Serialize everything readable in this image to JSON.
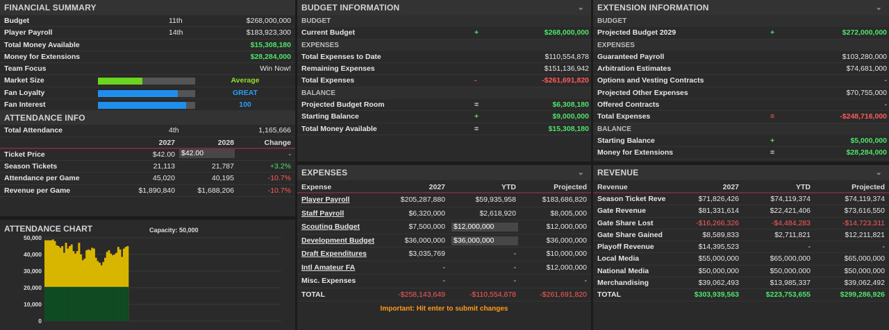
{
  "financial": {
    "title": "FINANCIAL SUMMARY",
    "rows": [
      {
        "label": "Budget",
        "rank": "11th",
        "value": "$268,000,000",
        "cls": ""
      },
      {
        "label": "Player Payroll",
        "rank": "14th",
        "value": "$183,923,300",
        "cls": ""
      },
      {
        "label": "Total Money Available",
        "rank": "",
        "value": "$15,308,180",
        "cls": "green"
      },
      {
        "label": "Money for Extensions",
        "rank": "",
        "value": "$28,284,000",
        "cls": "green"
      },
      {
        "label": "Team Focus",
        "rank": "",
        "value": "Win Now!",
        "cls": ""
      }
    ],
    "meters": [
      {
        "label": "Market Size",
        "fill": 0.46,
        "color": "#6bd61f",
        "text": "Average",
        "text_color": "#8fe02a"
      },
      {
        "label": "Fan Loyalty",
        "fill": 0.82,
        "color": "#1f8fef",
        "text": "GREAT",
        "text_color": "#2a9df4"
      },
      {
        "label": "Fan Interest",
        "fill": 0.91,
        "color": "#1f8fef",
        "text": "100",
        "text_color": "#2a9df4"
      }
    ]
  },
  "attendance": {
    "title": "ATTENDANCE INFO",
    "total_label": "Total Attendance",
    "total_rank": "4th",
    "total_value": "1,165,666",
    "headers": [
      "2027",
      "2028",
      "Change"
    ],
    "rows": [
      {
        "label": "Ticket Price",
        "y1": "$42.00",
        "y2": "$42.00",
        "change": "-",
        "cls": ""
      },
      {
        "label": "Season Tickets",
        "y1": "21,113",
        "y2": "21,787",
        "change": "+3.2%",
        "cls": "green"
      },
      {
        "label": "Attendance per Game",
        "y1": "45,020",
        "y2": "40,195",
        "change": "-10.7%",
        "cls": "red"
      },
      {
        "label": "Revenue per Game",
        "y1": "$1,890,840",
        "y2": "$1,688,206",
        "change": "-10.7%",
        "cls": "red"
      }
    ]
  },
  "chart": {
    "title": "ATTENDANCE CHART",
    "capacity": "Capacity: 50,000"
  },
  "chart_data": {
    "type": "bar",
    "title": "ATTENDANCE CHART",
    "ylim": [
      0,
      50000
    ],
    "yticks": [
      "0",
      "10,000",
      "20,000",
      "30,000",
      "40,000",
      "50,000"
    ],
    "series": [
      {
        "values": [
          20500,
          20500,
          20500,
          20500,
          20500,
          20500,
          20500,
          20500,
          20500,
          20500,
          20500,
          20500,
          20500,
          20500,
          20500,
          20500,
          20500,
          20500,
          20500,
          20500,
          20500,
          20500,
          20500,
          20500,
          20500,
          20500,
          20500,
          20500,
          20500,
          20500,
          20500,
          20500,
          20500,
          20500,
          20500,
          20500,
          20500,
          20500,
          20500,
          20500,
          20500,
          20500,
          20500,
          20500,
          20500
        ],
        "color": "#0f4a22"
      },
      {
        "values": [
          48500,
          48500,
          48500,
          48500,
          49000,
          48000,
          45500,
          45000,
          44000,
          45000,
          41000,
          47000,
          43500,
          45000,
          46000,
          42000,
          40500,
          42000,
          47000,
          40000,
          36500,
          37500,
          42500,
          43000,
          42500,
          44000,
          43500,
          38000,
          36000,
          35000,
          33500,
          35500,
          38000,
          41500,
          42500,
          40500,
          39500,
          40000,
          41000,
          44500,
          43000,
          38500,
          43500,
          44500,
          45000
        ],
        "color": "#d8b600"
      }
    ]
  },
  "budget": {
    "title": "BUDGET INFORMATION",
    "rows": [
      {
        "type": "sect",
        "label": "BUDGET"
      },
      {
        "type": "row",
        "label": "Current Budget",
        "op": "+",
        "op_cls": "green",
        "value": "$268,000,000",
        "cls": "green"
      },
      {
        "type": "sect",
        "label": "EXPENSES"
      },
      {
        "type": "row",
        "label": "Total Expenses to Date",
        "op": "",
        "op_cls": "",
        "value": "$110,554,878",
        "cls": ""
      },
      {
        "type": "row",
        "label": "Remaining Expenses",
        "op": "",
        "op_cls": "",
        "value": "$151,136,942",
        "cls": ""
      },
      {
        "type": "row",
        "label": "Total Expenses",
        "op": "-",
        "op_cls": "red",
        "value": "-$261,691,820",
        "cls": "red"
      },
      {
        "type": "sect",
        "label": "BALANCE"
      },
      {
        "type": "row",
        "label": "Projected Budget Room",
        "op": "=",
        "op_cls": "",
        "value": "$6,308,180",
        "cls": "green"
      },
      {
        "type": "row",
        "label": "Starting Balance",
        "op": "+",
        "op_cls": "green",
        "value": "$9,000,000",
        "cls": "green"
      },
      {
        "type": "row",
        "label": "Total Money Available",
        "op": "=",
        "op_cls": "",
        "value": "$15,308,180",
        "cls": "green"
      }
    ]
  },
  "extension": {
    "title": "EXTENSION INFORMATION",
    "rows": [
      {
        "type": "sect",
        "label": "BUDGET"
      },
      {
        "type": "row",
        "label": "Projected Budget 2029",
        "op": "+",
        "op_cls": "green",
        "value": "$272,000,000",
        "cls": "green"
      },
      {
        "type": "sect",
        "label": "EXPENSES"
      },
      {
        "type": "row",
        "label": "Guaranteed Payroll",
        "op": "",
        "op_cls": "",
        "value": "$103,280,000",
        "cls": ""
      },
      {
        "type": "row",
        "label": "Arbitration Estimates",
        "op": "",
        "op_cls": "",
        "value": "$74,681,000",
        "cls": ""
      },
      {
        "type": "row",
        "label": "Options and Vesting Contracts",
        "op": "",
        "op_cls": "",
        "value": "-",
        "cls": ""
      },
      {
        "type": "row",
        "label": "Projected Other Expenses",
        "op": "",
        "op_cls": "",
        "value": "$70,755,000",
        "cls": ""
      },
      {
        "type": "row",
        "label": "Offered Contracts",
        "op": "",
        "op_cls": "",
        "value": "-",
        "cls": ""
      },
      {
        "type": "row",
        "label": "Total Expenses",
        "op": "=",
        "op_cls": "red",
        "value": "-$248,716,000",
        "cls": "red"
      },
      {
        "type": "sect",
        "label": "BALANCE"
      },
      {
        "type": "row",
        "label": "Starting Balance",
        "op": "+",
        "op_cls": "green",
        "value": "$5,000,000",
        "cls": "green"
      },
      {
        "type": "row",
        "label": "Money for Extensions",
        "op": "=",
        "op_cls": "",
        "value": "$28,284,000",
        "cls": "green"
      }
    ]
  },
  "expenses": {
    "title": "EXPENSES",
    "headers": [
      "Expense",
      "2027",
      "YTD",
      "Projected"
    ],
    "rows": [
      {
        "label": "Player Payroll",
        "link": true,
        "y2027": "$205,287,880",
        "ytd": "$59,935,958",
        "ytd_input": false,
        "proj": "$183,686,820",
        "cls": ""
      },
      {
        "label": "Staff Payroll",
        "link": true,
        "y2027": "$6,320,000",
        "ytd": "$2,618,920",
        "ytd_input": false,
        "proj": "$8,005,000",
        "cls": ""
      },
      {
        "label": "Scouting Budget",
        "link": true,
        "y2027": "$7,500,000",
        "ytd": "$12,000,000",
        "ytd_input": true,
        "proj": "$12,000,000",
        "cls": ""
      },
      {
        "label": "Development Budget",
        "link": true,
        "y2027": "$36,000,000",
        "ytd": "$36,000,000",
        "ytd_input": true,
        "proj": "$36,000,000",
        "cls": ""
      },
      {
        "label": "Draft Expenditures",
        "link": true,
        "y2027": "$3,035,769",
        "ytd": "-",
        "ytd_input": false,
        "proj": "$10,000,000",
        "cls": ""
      },
      {
        "label": "Intl Amateur FA",
        "link": true,
        "y2027": "-",
        "ytd": "-",
        "ytd_input": false,
        "proj": "$12,000,000",
        "cls": ""
      },
      {
        "label": "Misc. Expenses",
        "link": false,
        "y2027": "-",
        "ytd": "-",
        "ytd_input": false,
        "proj": "-",
        "cls": ""
      },
      {
        "label": "TOTAL",
        "link": false,
        "y2027": "-$258,143,649",
        "ytd": "-$110,554,878",
        "ytd_input": false,
        "proj": "-$261,691,820",
        "cls": "red",
        "total": true
      }
    ],
    "note": "Important: Hit enter to submit changes"
  },
  "revenue": {
    "title": "REVENUE",
    "headers": [
      "Revenue",
      "2027",
      "YTD",
      "Projected"
    ],
    "rows": [
      {
        "label": "Season Ticket Revenue",
        "y2027": "$71,826,426",
        "ytd": "$74,119,374",
        "proj": "$74,119,374",
        "cls": ""
      },
      {
        "label": "Gate Revenue",
        "y2027": "$81,331,614",
        "ytd": "$22,421,406",
        "proj": "$73,616,550",
        "cls": ""
      },
      {
        "label": "Gate Share Lost",
        "y2027": "-$16,266,326",
        "ytd": "-$4,484,283",
        "proj": "-$14,723,311",
        "cls": "red"
      },
      {
        "label": "Gate Share Gained",
        "y2027": "$8,589,833",
        "ytd": "$2,711,821",
        "proj": "$12,211,821",
        "cls": ""
      },
      {
        "label": "Playoff Revenue",
        "y2027": "$14,395,523",
        "ytd": "-",
        "proj": "-",
        "cls": ""
      },
      {
        "label": "Local Media",
        "y2027": "$55,000,000",
        "ytd": "$65,000,000",
        "proj": "$65,000,000",
        "cls": ""
      },
      {
        "label": "National Media",
        "y2027": "$50,000,000",
        "ytd": "$50,000,000",
        "proj": "$50,000,000",
        "cls": ""
      },
      {
        "label": "Merchandising",
        "y2027": "$39,062,493",
        "ytd": "$13,985,337",
        "proj": "$39,062,492",
        "cls": ""
      },
      {
        "label": "TOTAL",
        "y2027": "$303,939,563",
        "ytd": "$223,753,655",
        "proj": "$299,286,926",
        "cls": "green",
        "total": true
      }
    ]
  },
  "icons": {
    "collapse": "chevron-down-icon"
  }
}
